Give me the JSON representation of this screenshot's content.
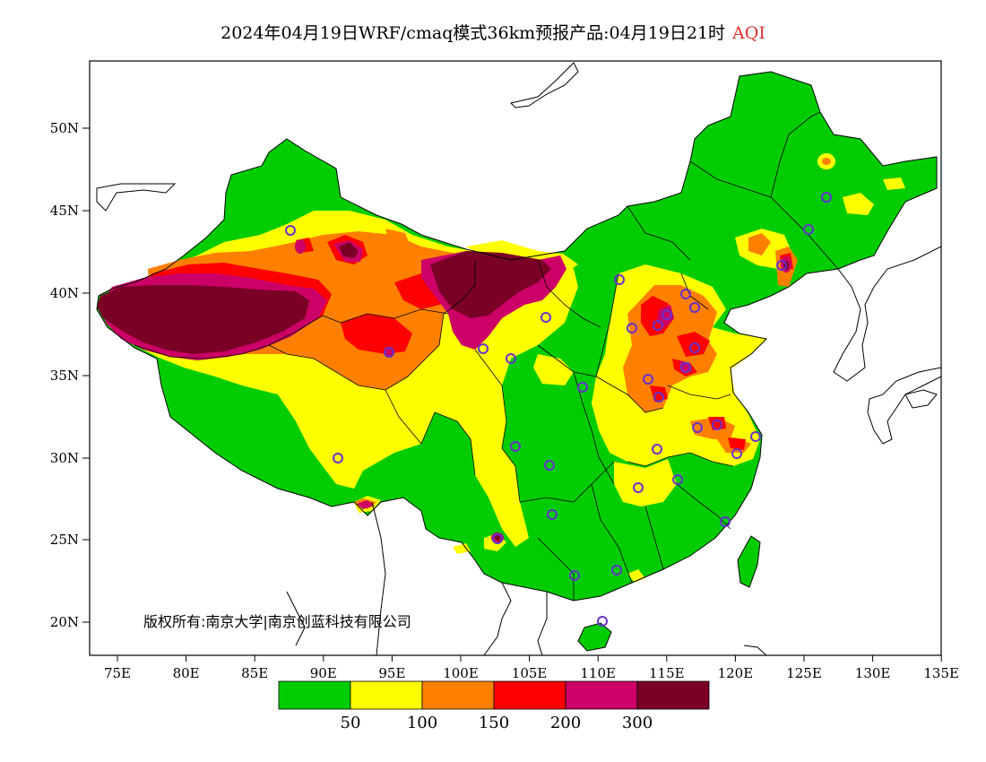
{
  "title": {
    "main": "2024年04月19日WRF/cmaq模式36km预报产品:04月19日21时",
    "variable": "AQI"
  },
  "copyright": "版权所有:南京大学|南京创蓝科技有限公司",
  "axes": {
    "lat_labels": [
      "50N",
      "45N",
      "40N",
      "35N",
      "30N",
      "25N",
      "20N"
    ],
    "lon_labels": [
      "75E",
      "80E",
      "85E",
      "90E",
      "95E",
      "100E",
      "105E",
      "110E",
      "115E",
      "120E",
      "125E",
      "130E",
      "135E"
    ]
  },
  "legend": {
    "colors": [
      "#00cc00",
      "#ffff00",
      "#ff8000",
      "#ff0000",
      "#cc0066",
      "#7a0026"
    ],
    "labels": [
      "50",
      "100",
      "150",
      "200",
      "300"
    ]
  },
  "station_marker_color": "#6633cc"
}
